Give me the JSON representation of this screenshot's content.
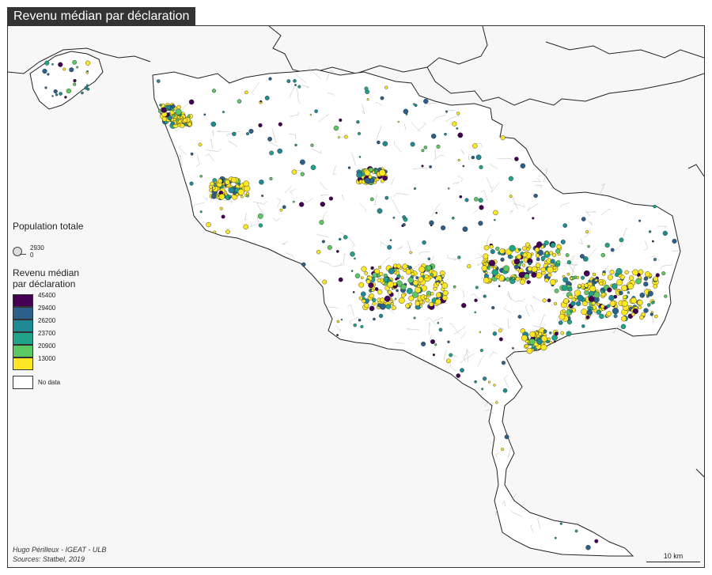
{
  "map": {
    "title": "Revenu médian par déclaration",
    "legend": {
      "population_title": "Population totale",
      "population_values": [
        "2930",
        "0"
      ],
      "income_title_line1": "Revenu médian",
      "income_title_line2": "par déclaration",
      "classes": [
        {
          "label": "45400",
          "color": "#440154"
        },
        {
          "label": "29400",
          "color": "#2c5f8a"
        },
        {
          "label": "26200",
          "color": "#1f8a94"
        },
        {
          "label": "23700",
          "color": "#21a38a"
        },
        {
          "label": "20900",
          "color": "#5cc863"
        },
        {
          "label": "13000",
          "color": "#fde725"
        }
      ],
      "no_data_label": "No data"
    },
    "credits": {
      "author": "Hugo Périlleux - IGEAT - ULB",
      "source": "Sources: Statbel, 2019"
    },
    "scale_label": "10 km",
    "colors": {
      "background": "#f7f7f7",
      "region_fill": "#ffffff",
      "border": "#222222",
      "commune_lines": "#b8b8b8",
      "title_bg": "#333333"
    }
  }
}
